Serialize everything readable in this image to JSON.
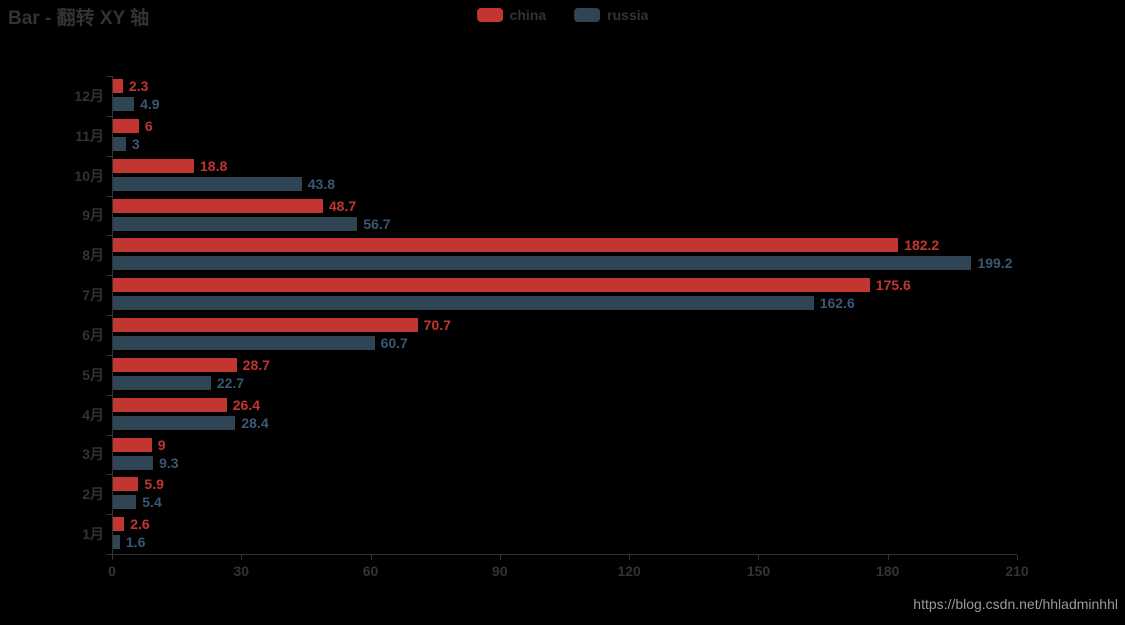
{
  "title": "Bar - 翻转 XY 轴",
  "watermark": "https://blog.csdn.net/hhladminhhl",
  "colors": {
    "background": "#000000",
    "text": "#333333",
    "axis": "#333333",
    "watermark_text": "#9a9a9a"
  },
  "legend": {
    "position": "top-center",
    "items": [
      {
        "label": "china",
        "color": "#c23531"
      },
      {
        "label": "russia",
        "color": "#2f4554"
      }
    ]
  },
  "chart_data": {
    "type": "bar",
    "orientation": "horizontal",
    "title": "Bar - 翻转 XY 轴",
    "xlabel": "",
    "ylabel": "",
    "categories": [
      "1月",
      "2月",
      "3月",
      "4月",
      "5月",
      "6月",
      "7月",
      "8月",
      "9月",
      "10月",
      "11月",
      "12月"
    ],
    "category_order_on_screen": "12月 at top, 1月 at bottom (inverted Y)",
    "series": [
      {
        "name": "china",
        "color": "#c23531",
        "label_color": "#c23531",
        "values": [
          2.6,
          5.9,
          9,
          26.4,
          28.7,
          70.7,
          175.6,
          182.2,
          48.7,
          18.8,
          6,
          2.3
        ]
      },
      {
        "name": "russia",
        "color": "#2f4554",
        "label_color": "#3a5873",
        "values": [
          1.6,
          5.4,
          9.3,
          28.4,
          22.7,
          60.7,
          162.6,
          199.2,
          56.7,
          43.8,
          3,
          4.9
        ]
      }
    ],
    "x_ticks": [
      0,
      30,
      60,
      90,
      120,
      150,
      180,
      210
    ],
    "xlim": [
      0,
      210
    ],
    "grid": false,
    "legend_position": "top-center",
    "value_labels": "at right end of each bar, colored by series"
  }
}
